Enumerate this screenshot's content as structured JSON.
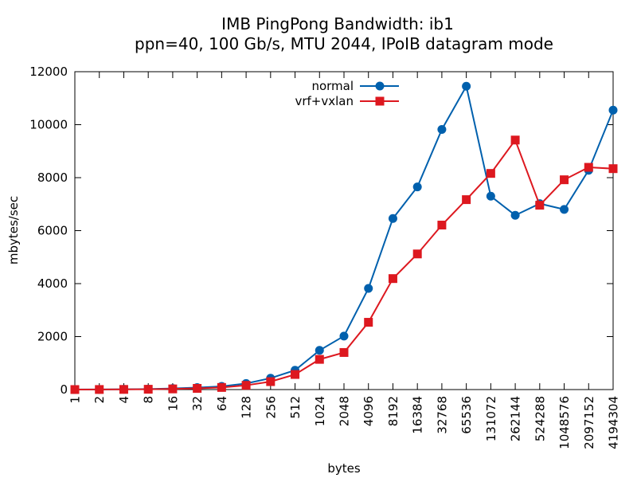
{
  "chart_data": {
    "type": "line",
    "title": "IMB PingPong Bandwidth: ib1",
    "subtitle": "ppn=40, 100 Gb/s, MTU 2044, IPoIB datagram mode",
    "xlabel": "bytes",
    "ylabel": "mbytes/sec",
    "ylim": [
      0,
      12000
    ],
    "yticks": [
      0,
      2000,
      4000,
      6000,
      8000,
      10000,
      12000
    ],
    "x_scale": "categorical",
    "grid": false,
    "legend_position": "top-center",
    "categories": [
      "1",
      "2",
      "4",
      "8",
      "16",
      "32",
      "64",
      "128",
      "256",
      "512",
      "1024",
      "2048",
      "4096",
      "8192",
      "16384",
      "32768",
      "65536",
      "131072",
      "262144",
      "524288",
      "1048576",
      "2097152",
      "4194304"
    ],
    "series": [
      {
        "name": "normal",
        "color": "#0060ad",
        "marker": "circle",
        "values": [
          2,
          5,
          10,
          20,
          40,
          75,
          120,
          230,
          430,
          730,
          1480,
          2020,
          3820,
          6460,
          7650,
          9820,
          11450,
          7300,
          6580,
          7020,
          6800,
          8280,
          10550
        ]
      },
      {
        "name": "vrf+vxlan",
        "color": "#dd181f",
        "marker": "square",
        "values": [
          1,
          3,
          6,
          12,
          25,
          45,
          80,
          160,
          300,
          570,
          1140,
          1400,
          2540,
          4190,
          5120,
          6210,
          7170,
          8160,
          9420,
          6960,
          7920,
          8390,
          8340
        ]
      }
    ]
  }
}
